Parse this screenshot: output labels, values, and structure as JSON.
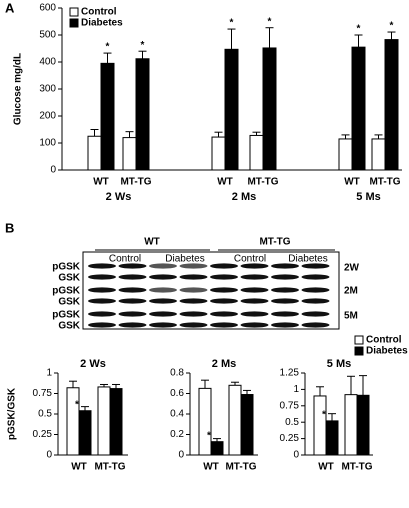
{
  "panels": [
    "A",
    "B"
  ],
  "blot": {
    "genotypes": [
      "WT",
      "MT-TG"
    ],
    "conditions": [
      "Control",
      "Diabetes",
      "Control",
      "Diabetes"
    ],
    "rows": [
      "pGSK",
      "GSK",
      "pGSK",
      "GSK",
      "pGSK",
      "GSK"
    ],
    "timepoints": [
      "2W",
      "2M",
      "5M"
    ]
  },
  "chart_data": [
    {
      "type": "bar",
      "ylabel": "Glucose mg/dL",
      "categories": [
        "WT",
        "MT-TG",
        "WT",
        "MT-TG",
        "WT",
        "MT-TG"
      ],
      "groups": [
        "2 Ws",
        "2 Ms",
        "5 Ms"
      ],
      "ylim": [
        0,
        600
      ],
      "yticks": [
        0,
        100,
        200,
        300,
        400,
        500,
        600
      ],
      "legend": "upper left",
      "series": [
        {
          "name": "Control",
          "color": "#ffffff",
          "values": [
            125,
            120,
            122,
            128,
            115,
            115
          ],
          "errors": [
            25,
            22,
            18,
            12,
            15,
            15
          ]
        },
        {
          "name": "Diabetes",
          "color": "#000000",
          "values": [
            395,
            412,
            447,
            452,
            455,
            483
          ],
          "errors": [
            38,
            28,
            75,
            75,
            45,
            28
          ],
          "annotations": [
            "*",
            "*",
            "*",
            "*",
            "*",
            "*"
          ]
        }
      ]
    },
    {
      "type": "bar",
      "title": "2 Ws",
      "ylabel": "pGSK/GSK",
      "categories": [
        "WT",
        "MT-TG"
      ],
      "ylim": [
        0,
        1
      ],
      "yticks": [
        0,
        0.25,
        0.5,
        0.75,
        1
      ],
      "series": [
        {
          "color": "#ffffff",
          "values": [
            0.82,
            0.83
          ],
          "errors": [
            0.08,
            0.03
          ]
        },
        {
          "color": "#000000",
          "values": [
            0.54,
            0.81
          ],
          "errors": [
            0.05,
            0.05
          ],
          "annotations": [
            "*",
            null
          ]
        }
      ]
    },
    {
      "type": "bar",
      "title": "2 Ms",
      "categories": [
        "WT",
        "MT-TG"
      ],
      "ylim": [
        0,
        0.8
      ],
      "yticks": [
        0,
        0.2,
        0.4,
        0.6,
        0.8
      ],
      "series": [
        {
          "color": "#ffffff",
          "values": [
            0.65,
            0.68
          ],
          "errors": [
            0.08,
            0.03
          ]
        },
        {
          "color": "#000000",
          "values": [
            0.13,
            0.59
          ],
          "errors": [
            0.03,
            0.04
          ],
          "annotations": [
            "*",
            null
          ]
        }
      ]
    },
    {
      "type": "bar",
      "title": "5 Ms",
      "categories": [
        "WT",
        "MT-TG"
      ],
      "ylim": [
        0,
        1.25
      ],
      "yticks": [
        0,
        0.25,
        0.5,
        0.75,
        1,
        1.25
      ],
      "legend": "upper right",
      "series": [
        {
          "name": "Control",
          "color": "#ffffff",
          "values": [
            0.9,
            0.92
          ],
          "errors": [
            0.14,
            0.28
          ]
        },
        {
          "name": "Diabetes",
          "color": "#000000",
          "values": [
            0.52,
            0.91
          ],
          "errors": [
            0.11,
            0.3
          ],
          "annotations": [
            "*",
            null
          ]
        }
      ]
    }
  ]
}
